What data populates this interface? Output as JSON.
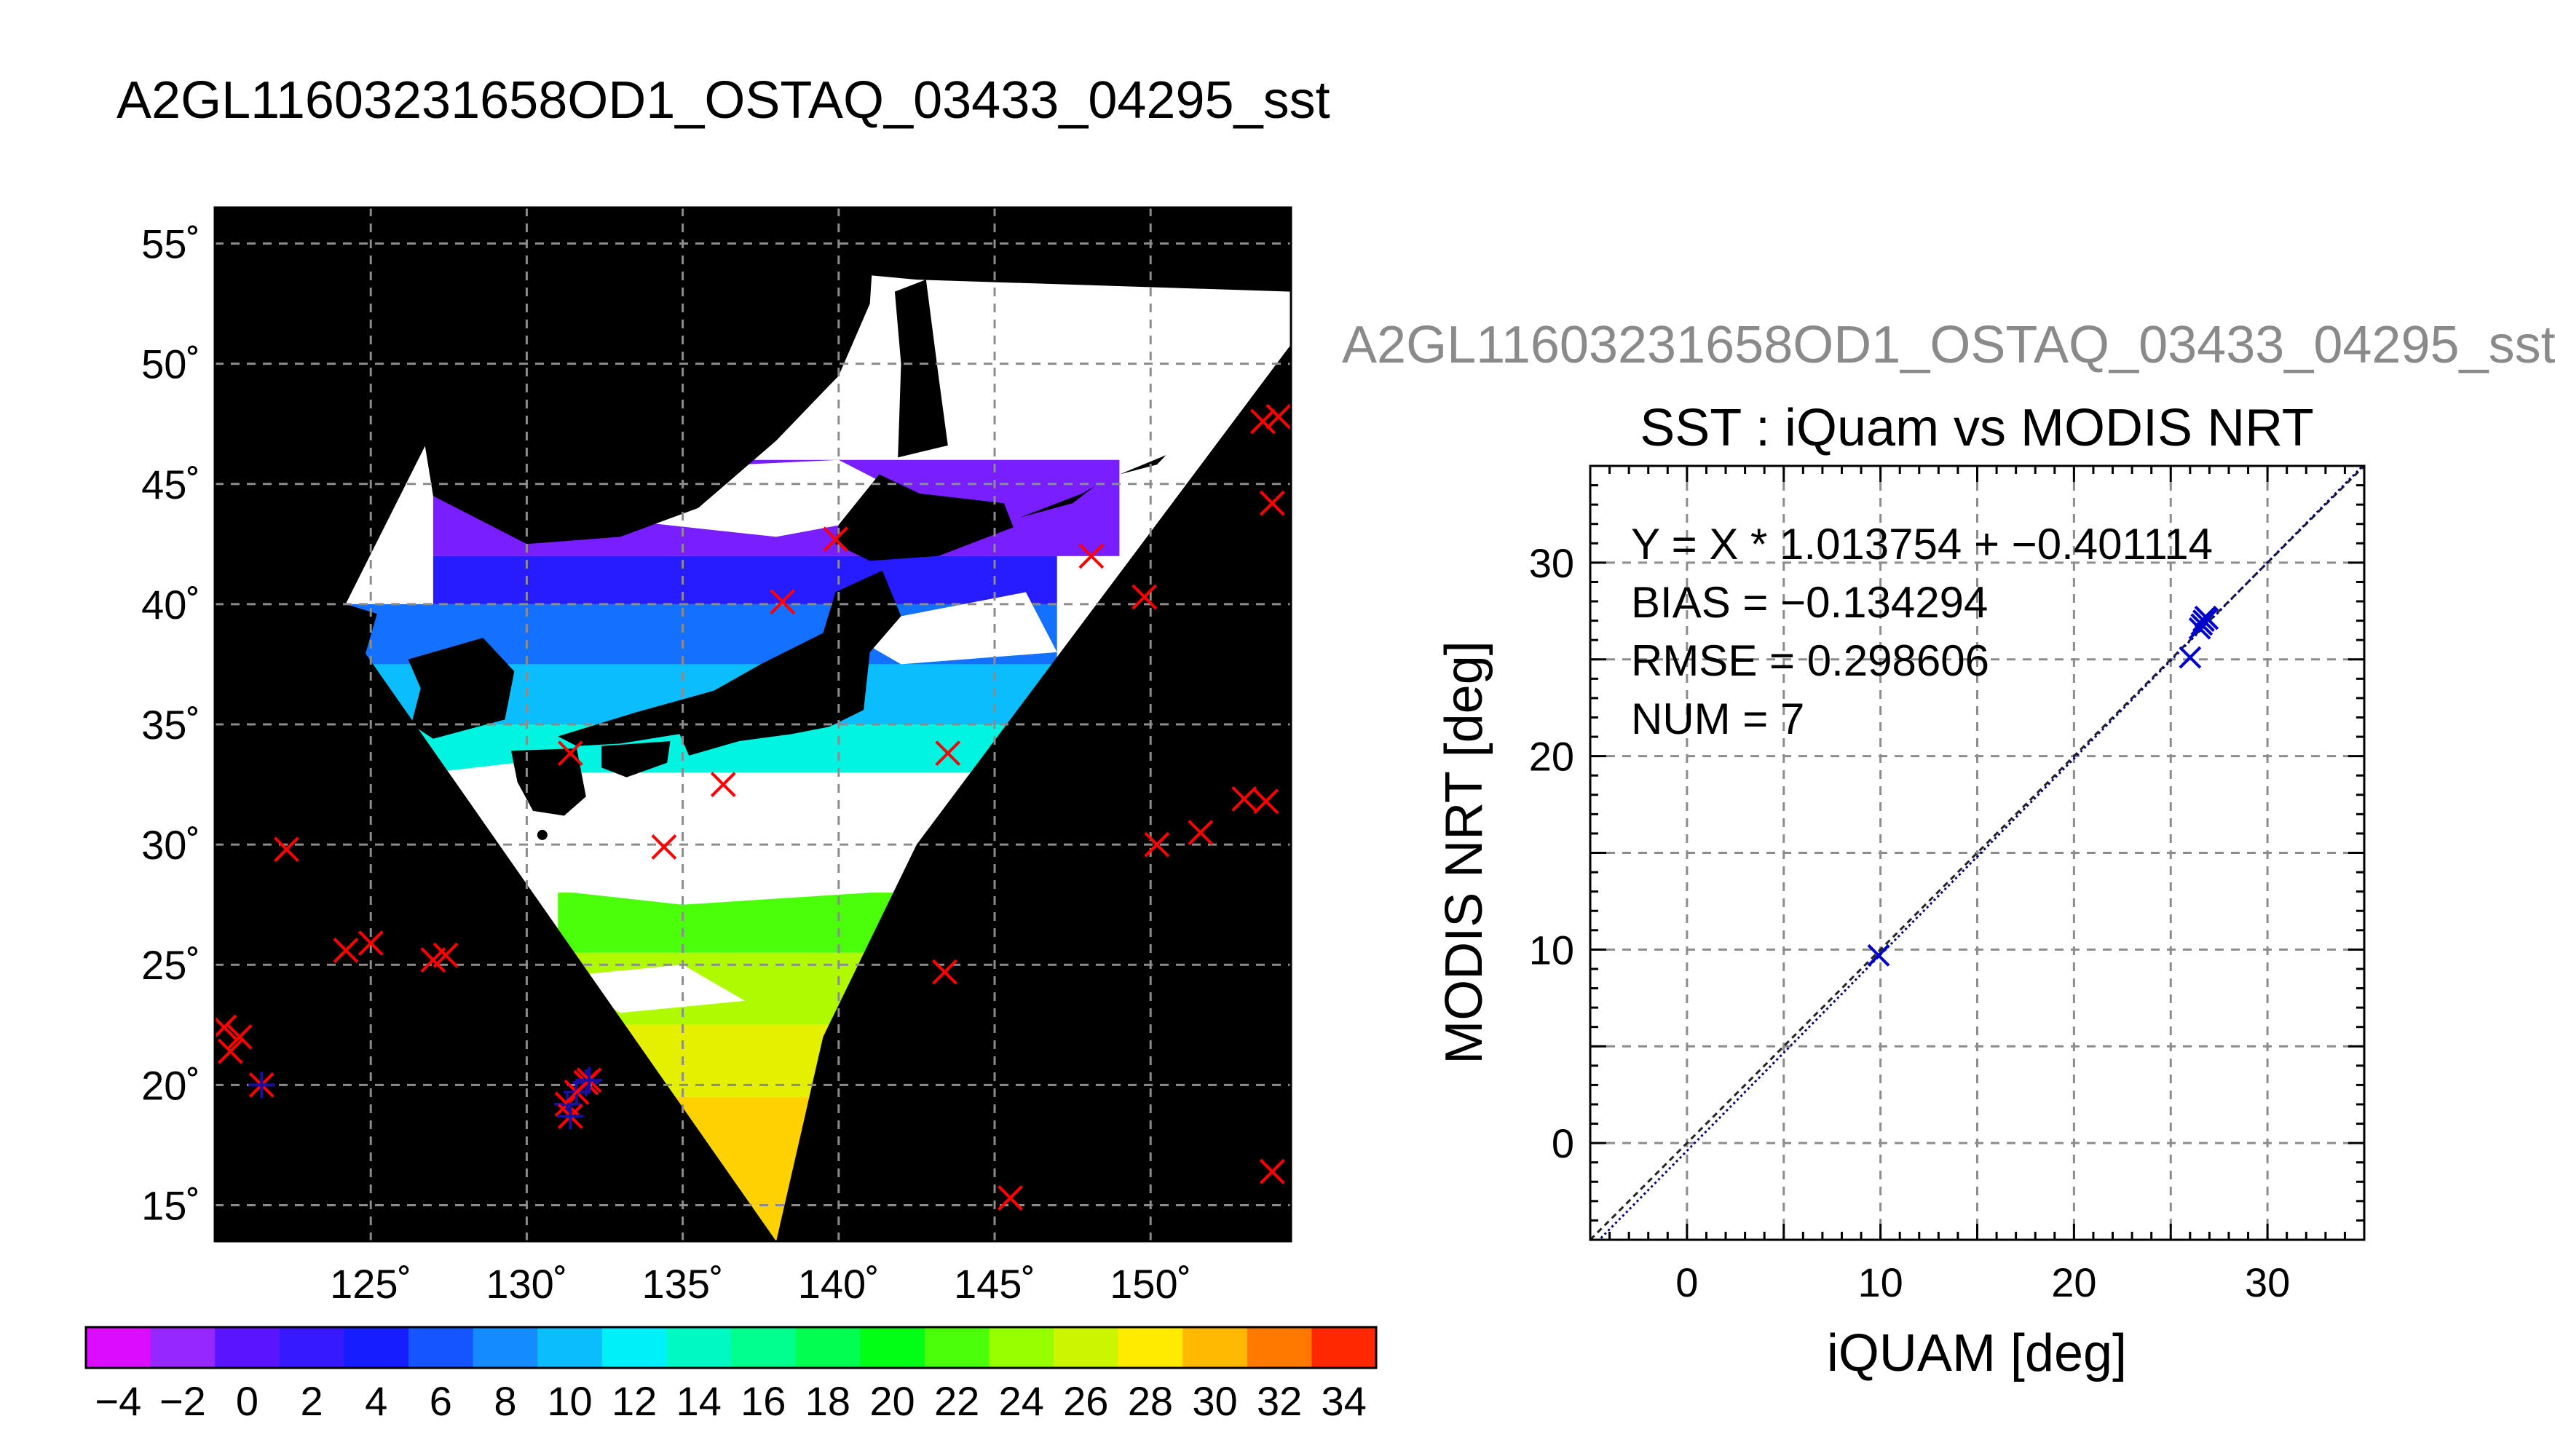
{
  "page_title": "A2GL11603231658OD1_OSTAQ_03433_04295_sst",
  "chart_data": [
    {
      "type": "heatmap",
      "title": "A2GL11603231658OD1_OSTAQ_03433_04295_sst",
      "xlabel": "",
      "ylabel": "",
      "xlim": [
        120,
        154.5
      ],
      "ylim": [
        13.5,
        56.5
      ],
      "x_ticks": [
        125,
        130,
        135,
        140,
        145,
        150
      ],
      "x_tick_labels": [
        "125˚",
        "130˚",
        "135˚",
        "140˚",
        "145˚",
        "150˚"
      ],
      "y_ticks": [
        15,
        20,
        25,
        30,
        35,
        40,
        45,
        50,
        55
      ],
      "y_tick_labels": [
        "15˚",
        "20˚",
        "25˚",
        "30˚",
        "35˚",
        "40˚",
        "45˚",
        "50˚",
        "55˚"
      ],
      "grid": true,
      "swath_polygon": [
        [
          124,
          39.5
        ],
        [
          138,
          13.5
        ],
        [
          154.5,
          50.8
        ],
        [
          154.5,
          53
        ],
        [
          142.5,
          53.5
        ],
        [
          130,
          55
        ]
      ],
      "sst_fill": [
        {
          "from_lat": 42,
          "to_lat": 46,
          "value": -1
        },
        {
          "from_lat": 40,
          "to_lat": 42,
          "value": 3
        },
        {
          "from_lat": 37.5,
          "to_lat": 40,
          "value": 7
        },
        {
          "from_lat": 35,
          "to_lat": 37.5,
          "value": 10
        },
        {
          "from_lat": 33,
          "to_lat": 35,
          "value": 13
        },
        {
          "from_lat": 25.5,
          "to_lat": 28,
          "value": 22
        },
        {
          "from_lat": 22.5,
          "to_lat": 25.5,
          "value": 25
        },
        {
          "from_lat": 19.5,
          "to_lat": 22.5,
          "value": 27
        },
        {
          "from_lat": 13.5,
          "to_lat": 19.5,
          "value": 29
        }
      ],
      "matchup_points": [
        {
          "lon": 121.5,
          "lat": 20
        },
        {
          "lon": 131.3,
          "lat": 19.2
        },
        {
          "lon": 131.6,
          "lat": 19.7
        },
        {
          "lon": 131.9,
          "lat": 20.1
        },
        {
          "lon": 131.4,
          "lat": 18.7
        },
        {
          "lon": 132.0,
          "lat": 20.2
        }
      ],
      "other_points": [
        {
          "lon": 120.3,
          "lat": 22.4
        },
        {
          "lon": 120.8,
          "lat": 22.0
        },
        {
          "lon": 120.5,
          "lat": 21.4
        },
        {
          "lon": 122.3,
          "lat": 29.8
        },
        {
          "lon": 124.2,
          "lat": 25.6
        },
        {
          "lon": 125.0,
          "lat": 25.9
        },
        {
          "lon": 127.0,
          "lat": 25.2
        },
        {
          "lon": 127.4,
          "lat": 25.4
        },
        {
          "lon": 131.4,
          "lat": 33.8
        },
        {
          "lon": 134.4,
          "lat": 29.9
        },
        {
          "lon": 136.3,
          "lat": 32.5
        },
        {
          "lon": 138.2,
          "lat": 40.1
        },
        {
          "lon": 139.9,
          "lat": 42.7
        },
        {
          "lon": 143.5,
          "lat": 33.8
        },
        {
          "lon": 143.4,
          "lat": 24.7
        },
        {
          "lon": 145.5,
          "lat": 15.3
        },
        {
          "lon": 148.1,
          "lat": 42.0
        },
        {
          "lon": 149.8,
          "lat": 40.3
        },
        {
          "lon": 150.2,
          "lat": 30.0
        },
        {
          "lon": 151.6,
          "lat": 30.5
        },
        {
          "lon": 153.0,
          "lat": 31.9
        },
        {
          "lon": 153.7,
          "lat": 31.8
        },
        {
          "lon": 153.9,
          "lat": 44.2
        },
        {
          "lon": 153.6,
          "lat": 47.6
        },
        {
          "lon": 154.1,
          "lat": 47.8
        },
        {
          "lon": 153.9,
          "lat": 16.4
        }
      ]
    },
    {
      "type": "scatter",
      "title": "SST : iQuam vs MODIS NRT",
      "subtitle": "A2GL11603231658OD1_OSTAQ_03433_04295_sst",
      "xlabel": "iQUAM [deg]",
      "ylabel": "MODIS NRT [deg]",
      "xlim": [
        -5,
        35
      ],
      "ylim": [
        -5,
        35
      ],
      "x_ticks": [
        0,
        10,
        20,
        30
      ],
      "y_ticks": [
        0,
        10,
        20,
        30
      ],
      "grid": true,
      "annotations": [
        "Y = X * 1.013754 + −0.401114",
        "BIAS = −0.134294",
        "RMSE = 0.298606",
        "NUM = 7"
      ],
      "fit": {
        "slope": 1.013754,
        "intercept": -0.401114
      },
      "points": [
        {
          "x": 9.9,
          "y": 9.7
        },
        {
          "x": 26.0,
          "y": 25.1
        },
        {
          "x": 26.5,
          "y": 26.6
        },
        {
          "x": 26.7,
          "y": 27.0
        },
        {
          "x": 26.8,
          "y": 27.2
        },
        {
          "x": 26.6,
          "y": 26.8
        },
        {
          "x": 26.9,
          "y": 27.1
        }
      ]
    },
    {
      "type": "colorbar",
      "range": [
        -5,
        35
      ],
      "step": 2,
      "tick_labels": [
        "−4",
        "−2",
        "0",
        "2",
        "4",
        "6",
        "8",
        "10",
        "12",
        "14",
        "16",
        "18",
        "20",
        "22",
        "24",
        "26",
        "28",
        "30",
        "32",
        "34"
      ]
    }
  ],
  "colors": {
    "map_background": "#000000",
    "land_cloud": "#ffffff",
    "marker_other": "#ff0000",
    "marker_match": "#1a10a0",
    "scatter_marker": "#0000cc",
    "fit_line": "#00007a",
    "grid": "#8c8c8c"
  }
}
